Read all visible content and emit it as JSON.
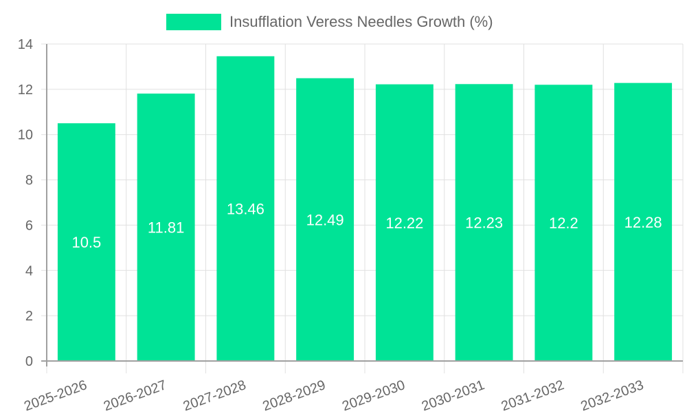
{
  "chart_data": {
    "type": "bar",
    "title": "",
    "legend": {
      "position": "top",
      "entries": [
        "Insufflation Veress Needles Growth (%)"
      ]
    },
    "categories": [
      "2025-2026",
      "2026-2027",
      "2027-2028",
      "2028-2029",
      "2029-2030",
      "2030-2031",
      "2031-2032",
      "2032-2033"
    ],
    "series": [
      {
        "name": "Insufflation Veress Needles Growth (%)",
        "values": [
          10.5,
          11.81,
          13.46,
          12.49,
          12.22,
          12.23,
          12.2,
          12.28
        ],
        "color": "#00e396"
      }
    ],
    "xlabel": "",
    "ylabel": "",
    "ylim": [
      0,
      14
    ],
    "yticks": [
      0,
      2,
      4,
      6,
      8,
      10,
      12,
      14
    ],
    "grid": true,
    "data_labels": true
  },
  "colors": {
    "bar": "#00e396",
    "grid": "#e0e0e0",
    "axis": "#a0a0a0",
    "tick_text": "#666666",
    "legend_text": "#666666",
    "data_label": "#ffffff"
  }
}
